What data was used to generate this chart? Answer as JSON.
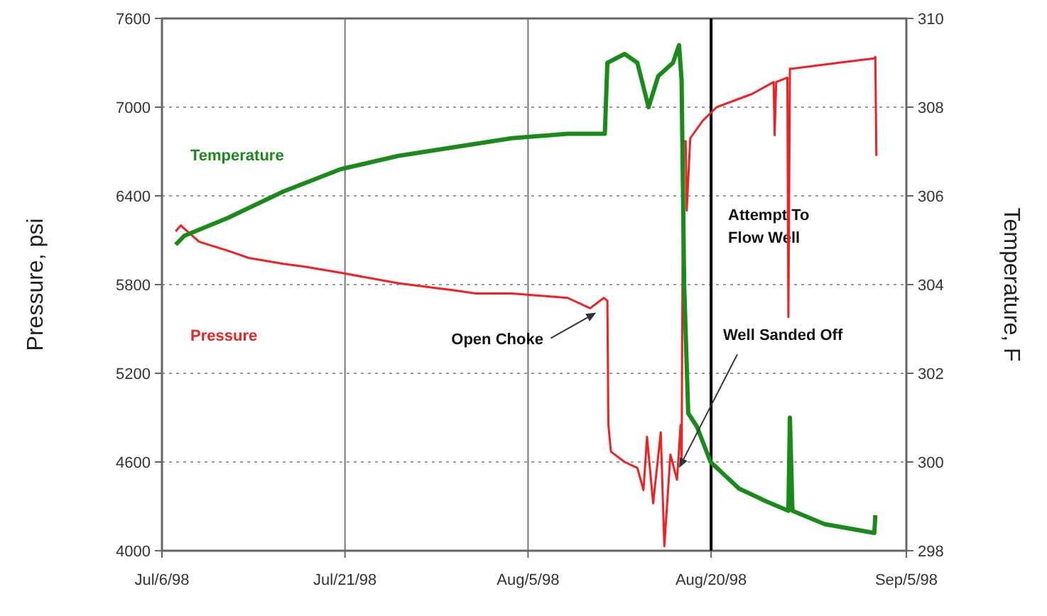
{
  "chart_data": {
    "type": "line",
    "ylabel": "Pressure, psi",
    "y2label": "Temperature, F",
    "xlim": [
      "1998-07-06",
      "1998-09-05"
    ],
    "xticks": [
      {
        "value": "1998-07-06",
        "label": "Jul/6/98"
      },
      {
        "value": "1998-07-21",
        "label": "Jul/21/98"
      },
      {
        "value": "1998-08-05",
        "label": "Aug/5/98"
      },
      {
        "value": "1998-08-20",
        "label": "Aug/20/98"
      },
      {
        "value": "1998-09-05",
        "label": "Sep/5/98"
      }
    ],
    "ylim": [
      4000,
      7600
    ],
    "yticks": [
      4000,
      4600,
      5200,
      5800,
      6400,
      7000,
      7600
    ],
    "y2lim": [
      298,
      310
    ],
    "y2ticks": [
      298,
      300,
      302,
      304,
      306,
      308,
      310
    ],
    "grid": true,
    "marker": "none",
    "line_style": "solid",
    "series": [
      {
        "name": "Pressure",
        "color": "#ee2222",
        "x": [
          "1998-07-07T03:00",
          "1998-07-07T13:00",
          "1998-07-09T01:00",
          "1998-07-11T09:00",
          "1998-07-13T03:00",
          "1998-07-15T23:00",
          "1998-07-17T19:00",
          "1998-07-20T15:00",
          "1998-07-25T08:00",
          "1998-07-30T00:00",
          "1998-07-31T17:00",
          "1998-08-03T16:00",
          "1998-08-08T06:00",
          "1998-08-10T02:00",
          "1998-08-11T05:00",
          "1998-08-11T12:00",
          "1998-08-11T14:00",
          "1998-08-11T19:00",
          "1998-08-12T22:00",
          "1998-08-13T23:00",
          "1998-08-14T11:00",
          "1998-08-14T18:00",
          "1998-08-15T06:00",
          "1998-08-15T21:00",
          "1998-08-16T04:00",
          "1998-08-16T16:00",
          "1998-08-17T05:00",
          "1998-08-17T12:00",
          "1998-08-17T14:00",
          "1998-08-17T17:00",
          "1998-08-17T22:00",
          "1998-08-18T00:00",
          "1998-08-18T07:00",
          "1998-08-19T08:00",
          "1998-08-20T11:00",
          "1998-08-23T09:00",
          "1998-08-25T03:00",
          "1998-08-25T05:00",
          "1998-08-25T08:00",
          "1998-08-26T06:00",
          "1998-08-26T08:00",
          "1998-08-26T11:00",
          "1998-08-26T16:00",
          "1998-08-30T10:00",
          "1998-09-02T09:00",
          "1998-09-02T11:00",
          "1998-09-02T13:00"
        ],
        "values": [
          6160,
          6200,
          6090,
          6030,
          5980,
          5940,
          5920,
          5880,
          5810,
          5760,
          5740,
          5740,
          5710,
          5640,
          5710,
          5690,
          4850,
          4670,
          4600,
          4560,
          4410,
          4770,
          4320,
          4800,
          4030,
          4650,
          4480,
          4850,
          4600,
          6770,
          6770,
          6300,
          6790,
          6910,
          7000,
          7090,
          7170,
          6810,
          7170,
          7200,
          5580,
          7260,
          7260,
          7300,
          7330,
          7340,
          6670
        ]
      },
      {
        "name": "Temperature",
        "color": "#1a8a1a",
        "axis": "y2",
        "x": [
          "1998-07-07T03:00",
          "1998-07-07T20:00",
          "1998-07-11T09:00",
          "1998-07-15T23:00",
          "1998-07-20T15:00",
          "1998-07-25T08:00",
          "1998-07-30T00:00",
          "1998-08-03T16:00",
          "1998-08-08T06:00",
          "1998-08-11T07:00",
          "1998-08-11T12:00",
          "1998-08-12T22:00",
          "1998-08-13T23:00",
          "1998-08-14T21:00",
          "1998-08-15T16:00",
          "1998-08-16T21:00",
          "1998-08-17T09:00",
          "1998-08-17T14:00",
          "1998-08-17T19:00",
          "1998-08-18T03:00",
          "1998-08-18T20:00",
          "1998-08-19T23:00",
          "1998-08-22T07:00",
          "1998-08-24T15:00",
          "1998-08-26T08:00",
          "1998-08-26T11:00",
          "1998-08-26T16:00",
          "1998-08-29T07:00",
          "1998-09-02T09:00",
          "1998-09-02T11:00"
        ],
        "values": [
          304.9,
          305.1,
          305.5,
          306.1,
          306.6,
          306.9,
          307.1,
          307.3,
          307.4,
          307.4,
          309.0,
          309.2,
          309.0,
          308.0,
          308.7,
          309.0,
          309.4,
          308.6,
          304.0,
          301.1,
          300.8,
          300.0,
          299.4,
          299.1,
          298.9,
          301.0,
          298.9,
          298.6,
          298.4,
          298.8
        ]
      }
    ],
    "ref_lines": [
      {
        "axis": "x",
        "value": "1998-08-20",
        "label": "Attempt To Flow Well",
        "color": "#000000"
      }
    ],
    "annotations": [
      {
        "text": "Open Choke",
        "x": "1998-08-10T14:00",
        "y": 5610
      },
      {
        "text": "Well Sanded Off",
        "x": "1998-08-17T09:00",
        "y": 4560
      }
    ]
  }
}
